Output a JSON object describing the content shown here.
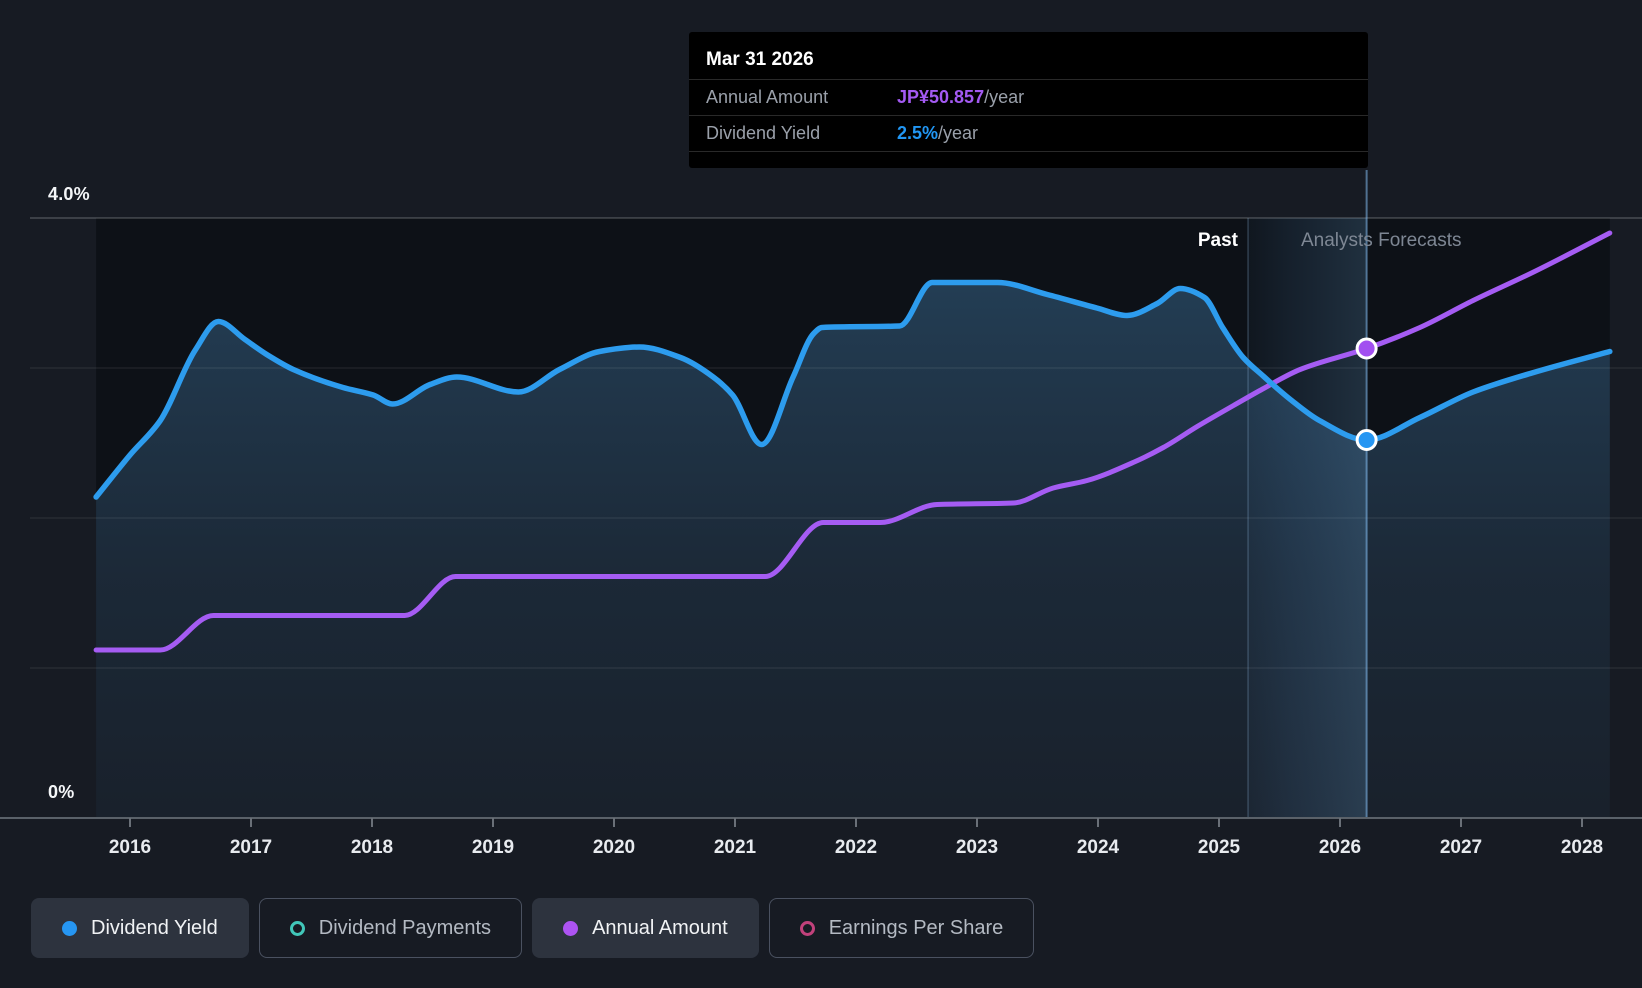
{
  "tooltip": {
    "date": "Mar 31 2026",
    "rows": [
      {
        "label": "Annual Amount",
        "value": "JP¥50.857",
        "suffix": "/year",
        "value_color": "#a35af2"
      },
      {
        "label": "Dividend Yield",
        "value": "2.5%",
        "suffix": "/year",
        "value_color": "#2196f3"
      }
    ]
  },
  "axes": {
    "y_top_label": "4.0%",
    "y_bottom_label": "0%",
    "x_years": [
      2016,
      2017,
      2018,
      2019,
      2020,
      2021,
      2022,
      2023,
      2024,
      2025,
      2026,
      2027,
      2028
    ]
  },
  "annotations": {
    "past_label": "Past",
    "forecasts_label": "Analysts Forecasts"
  },
  "legend": {
    "items": [
      {
        "label": "Dividend Yield",
        "marker": "filled",
        "color": "#2696f2",
        "active": true
      },
      {
        "label": "Dividend Payments",
        "marker": "ring",
        "color": "#41c7b9",
        "active": false
      },
      {
        "label": "Annual Amount",
        "marker": "filled",
        "color": "#ad53f2",
        "active": true
      },
      {
        "label": "Earnings Per Share",
        "marker": "ring",
        "color": "#c1417b",
        "active": false
      }
    ]
  },
  "chart_data": {
    "type": "area",
    "title": "Dividend history and forecast",
    "x_axis": {
      "years": [
        2016,
        2017,
        2018,
        2019,
        2020,
        2021,
        2022,
        2023,
        2024,
        2025,
        2026,
        2027,
        2028
      ]
    },
    "y_axis": {
      "min_pct": 0,
      "max_pct": 4,
      "gridline_pcts": [
        4,
        3,
        2,
        1
      ],
      "top_label": "4.0%",
      "bottom_label": "0%"
    },
    "past_boundary_year": 2025.24,
    "hover_year": 2026.22,
    "hover_date": "Mar 31 2026",
    "hover_values": {
      "annual_amount": "JP¥50.857/year",
      "dividend_yield": "2.5%/year"
    },
    "series": [
      {
        "name": "Dividend Yield",
        "style": "area",
        "color": "#2d9cee",
        "points": [
          [
            2015.72,
            2.14
          ],
          [
            2016.0,
            2.42
          ],
          [
            2016.25,
            2.65
          ],
          [
            2016.54,
            3.12
          ],
          [
            2016.73,
            3.31
          ],
          [
            2016.95,
            3.19
          ],
          [
            2017.13,
            3.09
          ],
          [
            2017.35,
            2.99
          ],
          [
            2017.76,
            2.87
          ],
          [
            2018.01,
            2.82
          ],
          [
            2018.17,
            2.76
          ],
          [
            2018.48,
            2.89
          ],
          [
            2018.7,
            2.94
          ],
          [
            2019.21,
            2.84
          ],
          [
            2019.55,
            2.99
          ],
          [
            2019.88,
            3.11
          ],
          [
            2020.21,
            3.14
          ],
          [
            2020.55,
            3.07
          ],
          [
            2020.82,
            2.94
          ],
          [
            2020.98,
            2.82
          ],
          [
            2021.22,
            2.49
          ],
          [
            2021.48,
            2.94
          ],
          [
            2021.65,
            3.23
          ],
          [
            2021.72,
            3.27
          ],
          [
            2022.36,
            3.28
          ],
          [
            2022.63,
            3.57
          ],
          [
            2023.17,
            3.57
          ],
          [
            2023.58,
            3.49
          ],
          [
            2023.99,
            3.4
          ],
          [
            2024.24,
            3.35
          ],
          [
            2024.49,
            3.43
          ],
          [
            2024.68,
            3.53
          ],
          [
            2024.88,
            3.47
          ],
          [
            2025.03,
            3.27
          ],
          [
            2025.2,
            3.07
          ],
          [
            2025.36,
            2.95
          ],
          [
            2025.59,
            2.79
          ],
          [
            2025.83,
            2.65
          ],
          [
            2026.22,
            2.52
          ],
          [
            2026.66,
            2.67
          ],
          [
            2027.1,
            2.84
          ],
          [
            2027.6,
            2.97
          ],
          [
            2028.23,
            3.11
          ]
        ]
      },
      {
        "name": "Annual Amount",
        "style": "line",
        "color": "#a55cf3",
        "points": [
          [
            2015.72,
            1.12
          ],
          [
            2016.25,
            1.12
          ],
          [
            2016.69,
            1.35
          ],
          [
            2018.27,
            1.35
          ],
          [
            2018.69,
            1.61
          ],
          [
            2021.25,
            1.61
          ],
          [
            2021.73,
            1.97
          ],
          [
            2022.2,
            1.97
          ],
          [
            2022.67,
            2.09
          ],
          [
            2023.3,
            2.1
          ],
          [
            2023.63,
            2.2
          ],
          [
            2023.91,
            2.25
          ],
          [
            2024.29,
            2.37
          ],
          [
            2024.54,
            2.47
          ],
          [
            2024.82,
            2.61
          ],
          [
            2025.12,
            2.75
          ],
          [
            2025.36,
            2.86
          ],
          [
            2025.67,
            2.99
          ],
          [
            2026.22,
            3.13
          ],
          [
            2026.66,
            3.27
          ],
          [
            2027.1,
            3.45
          ],
          [
            2027.6,
            3.64
          ],
          [
            2028.23,
            3.9
          ]
        ]
      }
    ],
    "markers": [
      {
        "series": "Annual Amount",
        "year": 2026.22,
        "pct": 3.13,
        "color": "#a24ff0"
      },
      {
        "series": "Dividend Yield",
        "year": 2026.22,
        "pct": 2.52,
        "color": "#2696f2"
      }
    ]
  }
}
